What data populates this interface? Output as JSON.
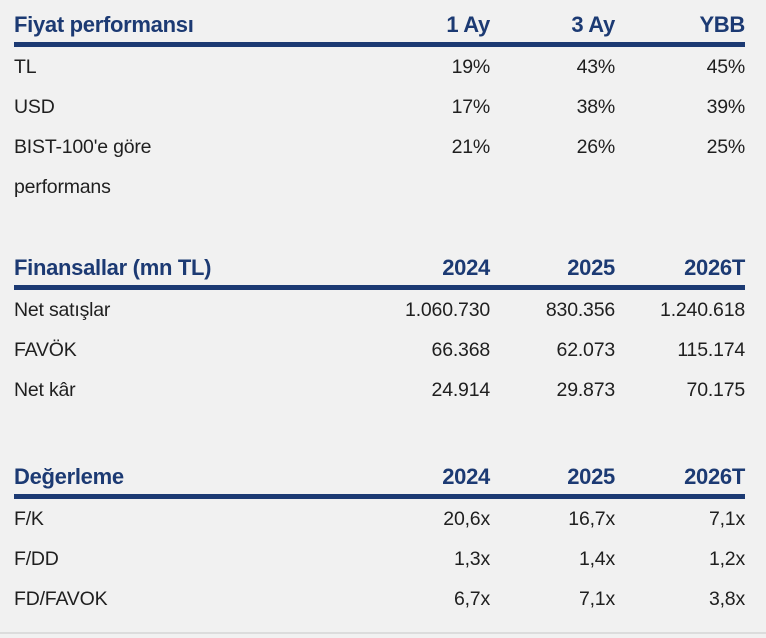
{
  "colors": {
    "accent_navy": "#1c3a73",
    "body_text": "#1f1f1f",
    "background": "#f1f1f1"
  },
  "tables": [
    {
      "id": "price-performance",
      "header": {
        "title": "Fiyat performansı",
        "columns": [
          "1 Ay",
          "3 Ay",
          "YBB"
        ]
      },
      "rows": [
        {
          "label": "TL",
          "values": [
            "19%",
            "43%",
            "45%"
          ]
        },
        {
          "label": "USD",
          "values": [
            "17%",
            "38%",
            "39%"
          ]
        },
        {
          "label": "BIST-100'e göre performans",
          "values": [
            "21%",
            "26%",
            "25%"
          ]
        }
      ]
    },
    {
      "id": "financials",
      "header": {
        "title": "Finansallar (mn TL)",
        "columns": [
          "2024",
          "2025",
          "2026T"
        ]
      },
      "rows": [
        {
          "label": "Net satışlar",
          "values": [
            "1.060.730",
            "830.356",
            "1.240.618"
          ]
        },
        {
          "label": "FAVÖK",
          "values": [
            "66.368",
            "62.073",
            "115.174"
          ]
        },
        {
          "label": "Net kâr",
          "values": [
            "24.914",
            "29.873",
            "70.175"
          ]
        }
      ]
    },
    {
      "id": "valuation",
      "header": {
        "title": "Değerleme",
        "columns": [
          "2024",
          "2025",
          "2026T"
        ]
      },
      "rows": [
        {
          "label": "F/K",
          "values": [
            "20,6x",
            "16,7x",
            "7,1x"
          ]
        },
        {
          "label": "F/DD",
          "values": [
            "1,3x",
            "1,4x",
            "1,2x"
          ]
        },
        {
          "label": "FD/FAVOK",
          "values": [
            "6,7x",
            "7,1x",
            "3,8x"
          ]
        }
      ]
    }
  ]
}
